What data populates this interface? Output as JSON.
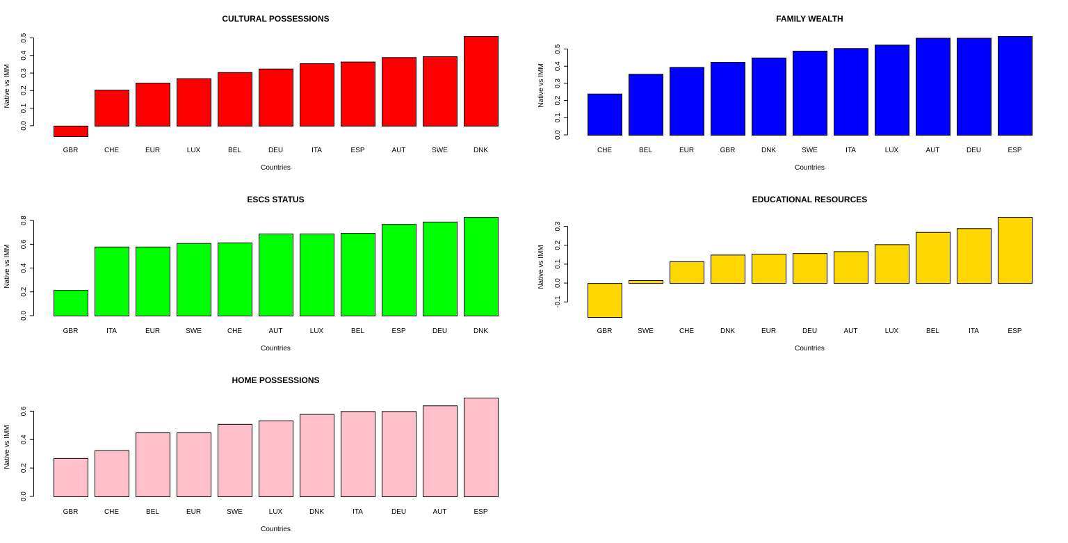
{
  "chart_data": [
    {
      "type": "bar",
      "title": "CULTURAL POSSESSIONS",
      "xlabel": "Countries",
      "ylabel": "Native vs IMM",
      "color": "#ff0000",
      "categories": [
        "GBR",
        "CHE",
        "EUR",
        "LUX",
        "BEL",
        "DEU",
        "ITA",
        "ESP",
        "AUT",
        "SWE",
        "DNK"
      ],
      "values": [
        -0.06,
        0.205,
        0.245,
        0.27,
        0.305,
        0.325,
        0.355,
        0.365,
        0.39,
        0.395,
        0.51
      ],
      "yticks": [
        0.0,
        0.1,
        0.2,
        0.3,
        0.4,
        0.5
      ],
      "ytick_labels": [
        "0.0",
        "0.1",
        "0.2",
        "0.3",
        "0.4",
        "0.5"
      ],
      "ylim": [
        -0.06,
        0.51
      ]
    },
    {
      "type": "bar",
      "title": "FAMILY WEALTH",
      "xlabel": "Countries",
      "ylabel": "Native vs IMM",
      "color": "#0000ff",
      "categories": [
        "CHE",
        "BEL",
        "EUR",
        "GBR",
        "DNK",
        "SWE",
        "ITA",
        "LUX",
        "AUT",
        "DEU",
        "ESP"
      ],
      "values": [
        0.24,
        0.355,
        0.395,
        0.425,
        0.45,
        0.49,
        0.505,
        0.525,
        0.565,
        0.565,
        0.575
      ],
      "yticks": [
        0.0,
        0.1,
        0.2,
        0.3,
        0.4,
        0.5
      ],
      "ytick_labels": [
        "0.0",
        "0.1",
        "0.2",
        "0.3",
        "0.4",
        "0.5"
      ],
      "ylim": [
        0,
        0.575
      ]
    },
    {
      "type": "bar",
      "title": "ESCS STATUS",
      "xlabel": "Countries",
      "ylabel": "Native vs IMM",
      "color": "#00ff00",
      "categories": [
        "GBR",
        "ITA",
        "EUR",
        "SWE",
        "CHE",
        "AUT",
        "LUX",
        "BEL",
        "ESP",
        "DEU",
        "DNK"
      ],
      "values": [
        0.215,
        0.58,
        0.58,
        0.61,
        0.615,
        0.69,
        0.69,
        0.695,
        0.77,
        0.79,
        0.83
      ],
      "yticks": [
        0.0,
        0.2,
        0.4,
        0.6,
        0.8
      ],
      "ytick_labels": [
        "0.0",
        "0.2",
        "0.4",
        "0.6",
        "0.8"
      ],
      "ylim": [
        0,
        0.83
      ]
    },
    {
      "type": "bar",
      "title": "EDUCATIONAL RESOURCES",
      "xlabel": "Countries",
      "ylabel": "Native vs IMM",
      "color": "#ffd700",
      "categories": [
        "GBR",
        "SWE",
        "CHE",
        "DNK",
        "EUR",
        "DEU",
        "AUT",
        "LUX",
        "BEL",
        "ITA",
        "ESP"
      ],
      "values": [
        -0.18,
        0.015,
        0.115,
        0.15,
        0.155,
        0.158,
        0.168,
        0.205,
        0.27,
        0.29,
        0.35
      ],
      "yticks": [
        -0.1,
        0.0,
        0.1,
        0.2,
        0.3
      ],
      "ytick_labels": [
        "-0.1",
        "0.0",
        "0.1",
        "0.2",
        "0.3"
      ],
      "ylim": [
        -0.18,
        0.35
      ]
    },
    {
      "type": "bar",
      "title": "HOME POSSESSIONS",
      "xlabel": "Countries",
      "ylabel": "Native vs IMM",
      "color": "#ffc0cb",
      "categories": [
        "GBR",
        "CHE",
        "BEL",
        "EUR",
        "SWE",
        "LUX",
        "DNK",
        "ITA",
        "DEU",
        "AUT",
        "ESP"
      ],
      "values": [
        0.27,
        0.325,
        0.45,
        0.45,
        0.51,
        0.535,
        0.58,
        0.6,
        0.6,
        0.64,
        0.695
      ],
      "yticks": [
        0.0,
        0.2,
        0.4,
        0.6
      ],
      "ytick_labels": [
        "0.0",
        "0.2",
        "0.4",
        "0.6"
      ],
      "ylim": [
        0,
        0.695
      ]
    }
  ]
}
